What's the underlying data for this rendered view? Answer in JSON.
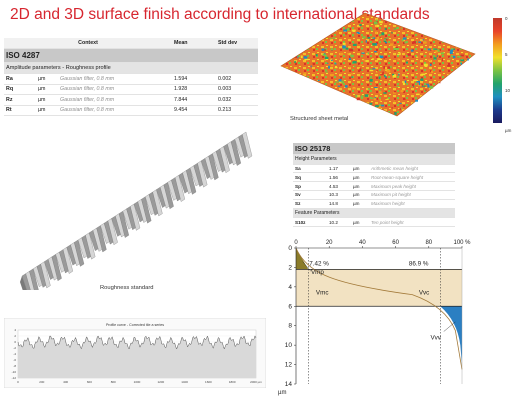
{
  "title": "2D and 3D surface finish according to international standards",
  "iso4287": {
    "standard": "ISO 4287",
    "headers": {
      "context": "Context",
      "mean": "Mean",
      "std": "Std dev"
    },
    "group": "Amplitude parameters - Roughness profile",
    "rows": [
      {
        "param": "Ra",
        "unit": "µm",
        "context": "Gaussian filter, 0.8 mm",
        "mean": "1.594",
        "std": "0.002"
      },
      {
        "param": "Rq",
        "unit": "µm",
        "context": "Gaussian filter, 0.8 mm",
        "mean": "1.928",
        "std": "0.003"
      },
      {
        "param": "Rz",
        "unit": "µm",
        "context": "Gaussian filter, 0.8 mm",
        "mean": "7.844",
        "std": "0.032"
      },
      {
        "param": "Rt",
        "unit": "µm",
        "context": "Gaussian filter, 0.8 mm",
        "mean": "9.454",
        "std": "0.213"
      }
    ]
  },
  "colorbar": {
    "ticks": [
      "0",
      "5",
      "10"
    ],
    "unit": "µm",
    "colors": [
      "#c0392b",
      "#e8432a",
      "#f39c1f",
      "#f1e02a",
      "#7cc343",
      "#22a36b",
      "#1f8fc0",
      "#1c3a8c",
      "#1a1a5e"
    ]
  },
  "captions": {
    "sheet": "Structured sheet metal",
    "roughness": "Roughness standard"
  },
  "iso25178": {
    "standard": "ISO 25178",
    "group1": "Height Parameters",
    "rows": [
      {
        "param": "Sa",
        "value": "1.17",
        "unit": "µm",
        "context": "Arithmetic mean height"
      },
      {
        "param": "Sq",
        "value": "1.56",
        "unit": "µm",
        "context": "Root-mean-square height"
      },
      {
        "param": "Sp",
        "value": "4.53",
        "unit": "µm",
        "context": "Maximum peak height"
      },
      {
        "param": "Sv",
        "value": "10.3",
        "unit": "µm",
        "context": "Maximum pit height"
      },
      {
        "param": "Sz",
        "value": "14.8",
        "unit": "µm",
        "context": "Maximum height"
      }
    ],
    "group2": "Feature Parameters",
    "feature_rows": [
      {
        "param": "S10z",
        "value": "10.2",
        "unit": "µm",
        "context": "Ten point height"
      }
    ]
  },
  "profile_chart": {
    "title": "Profile curve - Corrected tile a series",
    "y_ticks": [
      "4",
      "2",
      "0",
      "-2",
      "-4",
      "-6",
      "-8",
      "-10",
      "-12"
    ],
    "x_ticks": [
      "0",
      "200",
      "400",
      "600",
      "800",
      "1000",
      "1200",
      "1400",
      "1600",
      "1800",
      "2000 µm"
    ]
  },
  "abbott": {
    "x_ticks": [
      "0",
      "20",
      "40",
      "60",
      "80",
      "100 %"
    ],
    "y_ticks": [
      "0",
      "2",
      "4",
      "6",
      "8",
      "10",
      "12",
      "14"
    ],
    "y_unit": "µm",
    "label_top": "7.42 %",
    "label_vmp": "Vmp",
    "label_right": "86.9 %",
    "label_vmc": "Vmc",
    "label_vvc": "Vvc",
    "label_vvv": "Vvv",
    "colors": {
      "peak": "#8b7c2a",
      "core": "#f2e2c2",
      "valley": "#2b7fc2",
      "curve": "#a37a3a"
    }
  }
}
